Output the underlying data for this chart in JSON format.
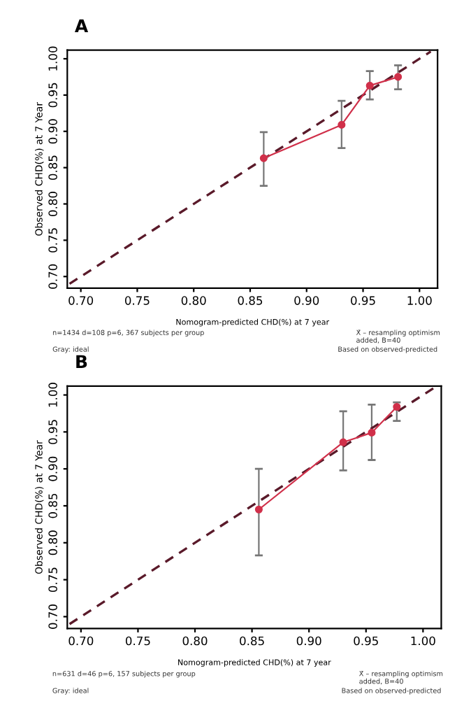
{
  "chart_data": [
    {
      "type": "line",
      "title": "A",
      "xlabel": "Nomogram-predicted CHD(%) at 7 year",
      "ylabel": "Observed CHD(%) at 7 Year",
      "xlim": [
        0.688,
        1.016
      ],
      "ylim": [
        0.684,
        1.012
      ],
      "xticks": [
        {
          "value": 0.7,
          "label": "0.70"
        },
        0.75,
        {
          "value": 0.8,
          "label": "0.80"
        },
        0.85,
        {
          "value": 0.9,
          "label": "0.90"
        },
        0.95,
        {
          "value": 1.0,
          "label": "1.00"
        }
      ],
      "yticks": [
        {
          "value": 0.7,
          "label": "0.70"
        },
        0.75,
        {
          "value": 0.8,
          "label": "0.80"
        },
        0.85,
        {
          "value": 0.9,
          "label": "0.90"
        },
        0.95,
        {
          "value": 1.0,
          "label": "1.00"
        }
      ],
      "series": [
        {
          "color": "#5a1a2a",
          "line_style": "dashed",
          "marker": "none",
          "x": [
            0.69,
            1.01
          ],
          "values": [
            0.69,
            1.01
          ]
        },
        {
          "color": "#d0304a",
          "line_style": "solid",
          "marker": "circle",
          "x": [
            0.862,
            0.931,
            0.956,
            0.981
          ],
          "values": [
            0.863,
            0.909,
            0.963,
            0.975
          ],
          "errors": [
            [
              0.825,
              0.899
            ],
            [
              0.877,
              0.942
            ],
            [
              0.944,
              0.983
            ],
            [
              0.958,
              0.991
            ]
          ]
        }
      ],
      "annotations": [
        "n=1434 d=108 p=6, 367 subjects per group",
        "X̄ – resampling optimism added, B=40",
        "Gray: ideal",
        "Based on observed-predicted"
      ]
    },
    {
      "type": "line",
      "title": "B",
      "xlabel": "Nomogram-predicted CHD(%) at 7 year",
      "ylabel": "Observed CHD(%) at 7 Year",
      "xlim": [
        0.688,
        1.016
      ],
      "ylim": [
        0.684,
        1.012
      ],
      "xticks": [
        {
          "value": 0.7,
          "label": "0.70"
        },
        0.75,
        {
          "value": 0.8,
          "label": "0.80"
        },
        0.85,
        {
          "value": 0.9,
          "label": "0.90"
        },
        0.95,
        {
          "value": 1.0,
          "label": "1.00"
        }
      ],
      "yticks": [
        {
          "value": 0.7,
          "label": "0.70"
        },
        0.75,
        {
          "value": 0.8,
          "label": "0.80"
        },
        0.85,
        {
          "value": 0.9,
          "label": "0.90"
        },
        0.95,
        {
          "value": 1.0,
          "label": "1.00"
        }
      ],
      "series": [
        {
          "color": "#5a1a2a",
          "line_style": "dashed",
          "marker": "none",
          "x": [
            0.69,
            1.01
          ],
          "values": [
            0.69,
            1.01
          ]
        },
        {
          "color": "#d0304a",
          "line_style": "solid",
          "marker": "circle",
          "x": [
            0.856,
            0.93,
            0.955,
            0.977
          ],
          "values": [
            0.845,
            0.936,
            0.949,
            0.984
          ],
          "errors": [
            [
              0.783,
              0.9
            ],
            [
              0.898,
              0.978
            ],
            [
              0.912,
              0.987
            ],
            [
              0.965,
              0.99
            ]
          ]
        }
      ],
      "annotations": [
        "n=631 d=46 p=6, 157 subjects per group",
        "X̄ – resampling optimism added, B=40",
        "Gray: ideal",
        "Based on observed-predicted"
      ]
    }
  ]
}
